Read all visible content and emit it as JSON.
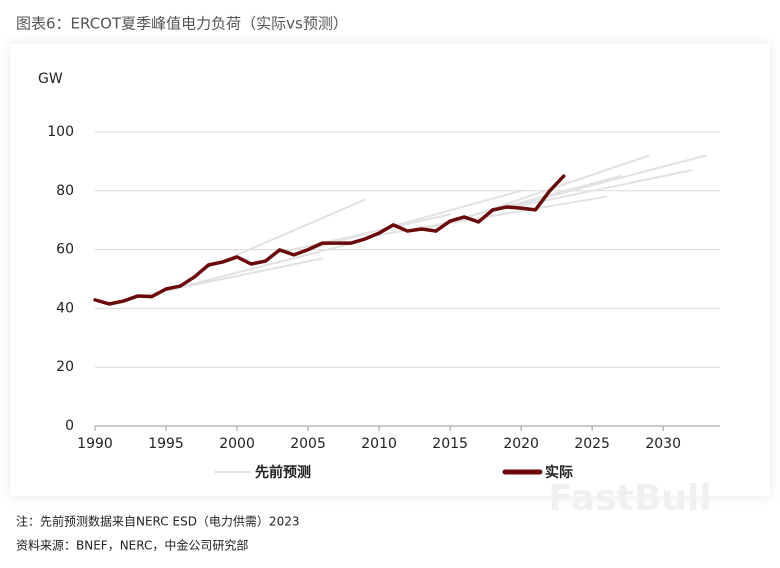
{
  "chart_data": {
    "type": "line",
    "title": "图表6：ERCOT夏季峰值电力负荷（实际vs预测）",
    "y_label": "GW",
    "xlim": [
      1990,
      2034
    ],
    "xticks": [
      1990,
      1995,
      2000,
      2005,
      2010,
      2015,
      2020,
      2025,
      2030
    ],
    "ylim": [
      0,
      100
    ],
    "yticks": [
      0,
      20,
      40,
      60,
      80,
      100
    ],
    "grid": true,
    "legend": "bottom",
    "series": [
      {
        "name": "先前预测",
        "color": "#e2e2e2",
        "lines": [
          {
            "x": [
              1993,
              2006
            ],
            "values": [
              44,
              57
            ]
          },
          {
            "x": [
              1995,
              2008
            ],
            "values": [
              46,
              62
            ]
          },
          {
            "x": [
              1998,
              2009
            ],
            "values": [
              54,
              77
            ]
          },
          {
            "x": [
              2003,
              2015
            ],
            "values": [
              59,
              72
            ]
          },
          {
            "x": [
              2005,
              2020
            ],
            "values": [
              60,
              80
            ]
          },
          {
            "x": [
              2010,
              2026
            ],
            "values": [
              65,
              78
            ]
          },
          {
            "x": [
              2013,
              2027
            ],
            "values": [
              67,
              85
            ]
          },
          {
            "x": [
              2015,
              2029
            ],
            "values": [
              69,
              92
            ]
          },
          {
            "x": [
              2018,
              2033
            ],
            "values": [
              73,
              92
            ]
          },
          {
            "x": [
              2019,
              2032
            ],
            "values": [
              74,
              87
            ]
          }
        ]
      },
      {
        "name": "实际",
        "color": "#6b0a0a",
        "x": [
          1990,
          1991,
          1992,
          1993,
          1994,
          1995,
          1996,
          1997,
          1998,
          1999,
          2000,
          2001,
          2002,
          2003,
          2004,
          2005,
          2006,
          2007,
          2008,
          2009,
          2010,
          2011,
          2012,
          2013,
          2014,
          2015,
          2016,
          2017,
          2018,
          2019,
          2020,
          2021,
          2022,
          2023
        ],
        "values": [
          42.9,
          41.5,
          42.5,
          44.2,
          44,
          46.6,
          47.6,
          50.7,
          54.8,
          55.8,
          57.5,
          55.1,
          56.1,
          59.9,
          58.2,
          60,
          62.2,
          62.2,
          62.2,
          63.6,
          65.6,
          68.4,
          66.3,
          67,
          66.3,
          69.7,
          71.1,
          69.4,
          73.5,
          74.5,
          74.1,
          73.5,
          79.9,
          85
        ]
      }
    ],
    "notes": [
      "注：先前预测数据来自NERC ESD（电力供需）2023",
      "资料来源：BNEF，NERC，中金公司研究部"
    ],
    "watermark": "FastBull"
  }
}
